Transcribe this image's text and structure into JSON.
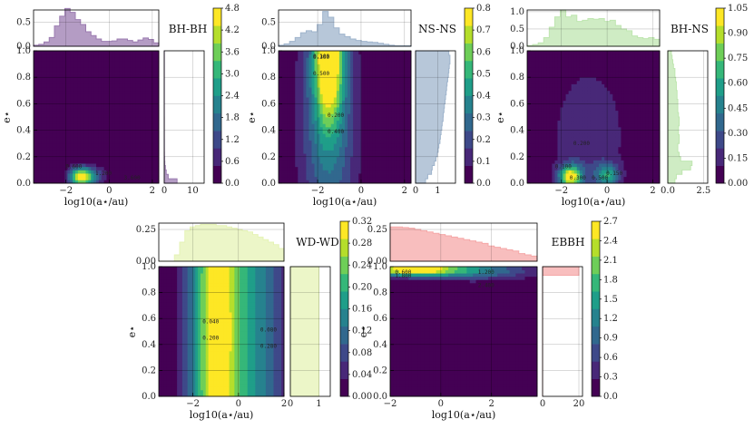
{
  "figure": {
    "xlabel": "log10(a⋆/au)",
    "ylabel": "e⋆",
    "colormap": [
      "#440154",
      "#482878",
      "#3e4989",
      "#31688e",
      "#26828e",
      "#1f9e89",
      "#35b779",
      "#6ece58",
      "#b5de2b",
      "#fde725"
    ]
  },
  "chart_data": [
    {
      "type": "heatmap",
      "title": "BH-BH",
      "xlim": [
        -3.5,
        2.3
      ],
      "ylim": [
        0,
        1
      ],
      "x_ticks": [
        "−2",
        "0",
        "2"
      ],
      "y_ticks": [
        "0.0",
        "0.2",
        "0.4",
        "0.6",
        "0.8",
        "1.0"
      ],
      "colorbar_ticks": [
        "0.0",
        "0.6",
        "1.2",
        "1.8",
        "2.4",
        "3.0",
        "3.6",
        "4.2",
        "4.8"
      ],
      "colorbar_max": 4.8,
      "hist_top": {
        "ylim": [
          0,
          0.75
        ],
        "y_ticks": [
          "0.0",
          "0.5"
        ],
        "color": "#9b7bb0",
        "values": [
          0.02,
          0.04,
          0.09,
          0.18,
          0.42,
          0.62,
          0.78,
          0.7,
          0.55,
          0.45,
          0.3,
          0.22,
          0.15,
          0.1,
          0.1,
          0.11,
          0.15,
          0.15,
          0.12,
          0.09,
          0.13,
          0.17,
          0.14,
          0.07
        ]
      },
      "hist_right": {
        "xlim": [
          0,
          14
        ],
        "x_ticks": [
          "0",
          "10"
        ],
        "color": "#9b7bb0",
        "values": [
          4.5,
          1.4,
          0.7,
          0.4,
          0.2,
          0.12,
          0.08,
          0.06,
          0.05,
          0.05,
          0.04,
          0.04,
          0.04,
          0.04,
          0.04,
          0.03,
          0.03,
          0.03,
          0.03,
          0.03,
          0.03,
          0.03,
          0.03,
          0.03,
          0.03,
          0.03,
          0.03,
          0.03,
          0.03,
          0.03
        ]
      },
      "contour_labels": [
        "0.600",
        "1.200",
        "3.600"
      ],
      "blobs": [
        {
          "cx": -1.3,
          "cy": 0.05,
          "sx": 0.38,
          "sy": 0.05,
          "a": 4.8
        },
        {
          "cx": -0.6,
          "cy": 0.06,
          "sx": 0.35,
          "sy": 0.05,
          "a": 1.1
        },
        {
          "cx": 1.4,
          "cy": 0.04,
          "sx": 0.25,
          "sy": 0.03,
          "a": 0.3
        }
      ]
    },
    {
      "type": "heatmap",
      "title": "NS-NS",
      "xlim": [
        -3.8,
        2.3
      ],
      "ylim": [
        0,
        1
      ],
      "x_ticks": [
        "−2",
        "0",
        "2"
      ],
      "y_ticks": [
        "0.0",
        "0.2",
        "0.4",
        "0.6",
        "0.8",
        "1.0"
      ],
      "colorbar_ticks": [
        "0.0",
        "0.1",
        "0.2",
        "0.3",
        "0.4",
        "0.5",
        "0.6",
        "0.7",
        "0.8"
      ],
      "colorbar_max": 0.8,
      "hist_top": {
        "ylim": [
          0,
          0.75
        ],
        "y_ticks": [
          "0.0",
          "0.5"
        ],
        "color": "#9fb4cc",
        "values": [
          0.02,
          0.05,
          0.1,
          0.18,
          0.28,
          0.32,
          0.3,
          0.45,
          0.72,
          0.6,
          0.38,
          0.25,
          0.2,
          0.15,
          0.12,
          0.1,
          0.09,
          0.08,
          0.06,
          0.04,
          0.02,
          0.01,
          0.01,
          0.01
        ]
      },
      "hist_right": {
        "xlim": [
          0,
          1.8
        ],
        "x_ticks": [
          "0",
          "1"
        ],
        "color": "#9fb4cc",
        "values": [
          0.45,
          0.55,
          0.72,
          0.75,
          0.85,
          0.92,
          0.98,
          1.02,
          1.05,
          1.1,
          1.12,
          1.15,
          1.18,
          1.2,
          1.24,
          1.25,
          1.28,
          1.3,
          1.33,
          1.35,
          1.38,
          1.4,
          1.42,
          1.45,
          1.48,
          1.5,
          1.52,
          1.55,
          1.55,
          1.5
        ]
      },
      "contour_labels": [
        "0.100",
        "0.200",
        "0.300",
        "0.400",
        "0.500"
      ],
      "blobs": [
        {
          "cx": -1.5,
          "cy": 1.0,
          "sx": 0.45,
          "sy": 0.35,
          "a": 0.8
        },
        {
          "cx": -1.5,
          "cy": 0.5,
          "sx": 0.9,
          "sy": 0.7,
          "a": 0.35
        }
      ]
    },
    {
      "type": "heatmap",
      "title": "BH-NS",
      "xlim": [
        -3.5,
        2.3
      ],
      "ylim": [
        0,
        1
      ],
      "x_ticks": [
        "−2",
        "0",
        "2"
      ],
      "y_ticks": [
        "0.0",
        "0.2",
        "0.4",
        "0.6",
        "0.8",
        "1.0"
      ],
      "colorbar_ticks": [
        "0.00",
        "0.15",
        "0.30",
        "0.45",
        "0.60",
        "0.75",
        "0.90",
        "1.05"
      ],
      "colorbar_max": 1.05,
      "hist_top": {
        "ylim": [
          0,
          1.05
        ],
        "y_ticks": [
          "0.0",
          "0.5",
          "1.0"
        ],
        "color": "#bfe6b0",
        "values": [
          0.02,
          0.05,
          0.1,
          0.25,
          0.55,
          0.85,
          1.05,
          0.85,
          0.9,
          0.72,
          0.75,
          0.8,
          0.78,
          0.8,
          0.72,
          0.75,
          0.6,
          0.5,
          0.45,
          0.3,
          0.25,
          0.22,
          0.25,
          0.2
        ]
      },
      "hist_right": {
        "xlim": [
          0,
          2.8
        ],
        "x_ticks": [
          "0.0",
          "2.5"
        ],
        "color": "#bfe6b0",
        "values": [
          0.5,
          0.6,
          1.0,
          1.6,
          1.7,
          0.9,
          0.8,
          0.7,
          0.7,
          0.8,
          0.8,
          0.75,
          0.75,
          0.8,
          0.8,
          0.75,
          0.7,
          0.7,
          0.7,
          0.65,
          0.65,
          0.6,
          0.6,
          0.55,
          0.5,
          0.5,
          0.4,
          0.35,
          0.3,
          0.25
        ]
      },
      "contour_labels": [
        "0.100",
        "0.150",
        "0.200",
        "0.300",
        "0.500"
      ],
      "blobs": [
        {
          "cx": -1.6,
          "cy": 0.05,
          "sx": 0.35,
          "sy": 0.06,
          "a": 1.0
        },
        {
          "cx": 0.0,
          "cy": 0.06,
          "sx": 0.35,
          "sy": 0.06,
          "a": 0.55
        },
        {
          "cx": -0.8,
          "cy": 0.35,
          "sx": 1.2,
          "sy": 0.4,
          "a": 0.2
        }
      ]
    },
    {
      "type": "heatmap",
      "title": "WD-WD",
      "xlim": [
        -3.5,
        2.0
      ],
      "ylim": [
        0,
        1
      ],
      "x_ticks": [
        "−2",
        "0",
        "2"
      ],
      "y_ticks": [
        "0.0",
        "0.2",
        "0.4",
        "0.6",
        "0.8",
        "1.0"
      ],
      "colorbar_ticks": [
        "0.00",
        "0.04",
        "0.08",
        "0.12",
        "0.16",
        "0.20",
        "0.24",
        "0.28",
        "0.32"
      ],
      "colorbar_max": 0.32,
      "hist_top": {
        "ylim": [
          0,
          0.3
        ],
        "y_ticks": [
          "0.00",
          "0.25"
        ],
        "color": "#e5f3b6",
        "values": [
          0.0,
          0.0,
          0.0,
          0.05,
          0.15,
          0.24,
          0.27,
          0.28,
          0.29,
          0.29,
          0.29,
          0.28,
          0.28,
          0.27,
          0.26,
          0.25,
          0.24,
          0.23,
          0.21,
          0.19,
          0.17,
          0.15,
          0.13,
          0.1
        ]
      },
      "hist_right": {
        "xlim": [
          0,
          1.4
        ],
        "x_ticks": [
          "0",
          "1"
        ],
        "color": "#e5f3b6",
        "values": [
          1,
          1,
          1,
          1,
          1,
          1,
          1,
          1,
          1,
          1,
          1,
          1,
          1,
          1,
          1,
          1,
          1,
          1,
          1,
          1,
          1,
          1,
          1,
          1,
          1,
          1,
          1,
          1,
          1,
          1
        ]
      },
      "contour_labels": [
        "0.040",
        "0.080",
        "0.200",
        "0.280"
      ],
      "blobs": [
        {
          "cx": -0.9,
          "cy": 0.5,
          "sx": 0.85,
          "sy": 3.0,
          "a": 0.32
        },
        {
          "cx": 1.0,
          "cy": 0.5,
          "sx": 0.8,
          "sy": 3.0,
          "a": 0.12
        }
      ]
    },
    {
      "type": "heatmap",
      "title": "EBBH",
      "xlim": [
        -2.0,
        3.8
      ],
      "ylim": [
        0,
        1
      ],
      "x_ticks": [
        "−2",
        "0",
        "2"
      ],
      "y_ticks": [
        "0.0",
        "0.2",
        "0.4",
        "0.6",
        "0.8",
        "1.0"
      ],
      "colorbar_ticks": [
        "0.0",
        "0.3",
        "0.6",
        "0.9",
        "1.2",
        "1.5",
        "1.8",
        "2.1",
        "2.4",
        "2.7"
      ],
      "colorbar_max": 2.7,
      "hist_top": {
        "ylim": [
          0,
          0.3
        ],
        "y_ticks": [
          "0.00",
          "0.25"
        ],
        "color": "#f5a8a8",
        "values": [
          0.27,
          0.27,
          0.265,
          0.26,
          0.25,
          0.24,
          0.23,
          0.22,
          0.21,
          0.2,
          0.19,
          0.18,
          0.17,
          0.16,
          0.15,
          0.14,
          0.12,
          0.11,
          0.1,
          0.09,
          0.08,
          0.06,
          0.05,
          0.04
        ]
      },
      "hist_right": {
        "xlim": [
          0,
          22
        ],
        "x_ticks": [
          "0",
          "20"
        ],
        "color": "#f5a8a8",
        "values": [
          0,
          0,
          0,
          0,
          0,
          0,
          0,
          0,
          0,
          0,
          0,
          0,
          0,
          0,
          0,
          0,
          0,
          0,
          0,
          0,
          0,
          0,
          0,
          0,
          0,
          0,
          0,
          0,
          20,
          20
        ]
      },
      "contour_labels": [
        "0.600",
        "1.200",
        "1.800",
        "2.400"
      ],
      "blobs": [
        {
          "cx": -1.2,
          "cy": 0.98,
          "sx": 1.4,
          "sy": 0.035,
          "a": 2.7
        },
        {
          "cx": 1.5,
          "cy": 0.97,
          "sx": 1.6,
          "sy": 0.05,
          "a": 1.0
        }
      ]
    }
  ]
}
